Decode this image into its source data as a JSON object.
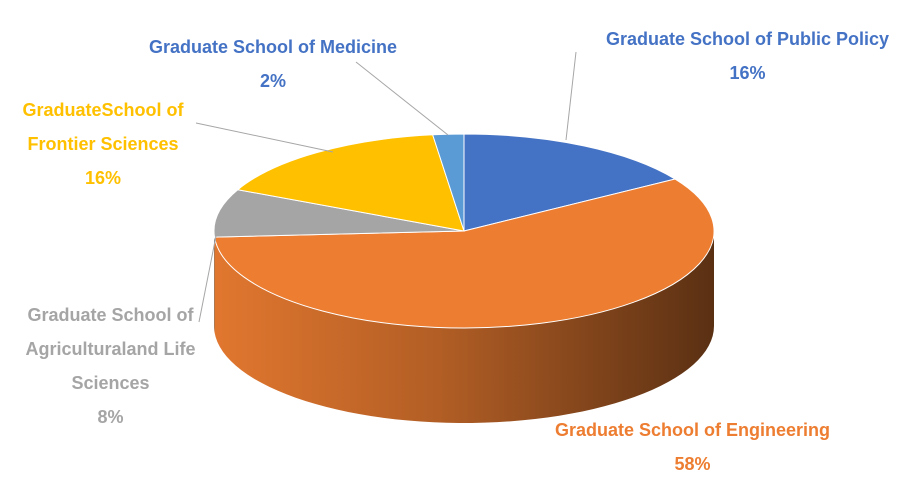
{
  "chart_data": {
    "type": "pie",
    "style": "3d-exploded-none",
    "title": "",
    "slices": [
      {
        "label": "Graduate School of Public Policy",
        "value": 16,
        "pct_text": "16%",
        "color": "#4472c4",
        "label_color": "#4472c4"
      },
      {
        "label": "Graduate School of Engineering",
        "value": 58,
        "pct_text": "58%",
        "color": "#ed7d31",
        "label_color": "#ed7d31"
      },
      {
        "label": "Graduate School of Agriculturaland Life Sciences",
        "value": 8,
        "pct_text": "8%",
        "color": "#a5a5a5",
        "label_color": "#a5a5a5"
      },
      {
        "label": "GraduateSchool of Frontier Sciences",
        "value": 16,
        "pct_text": "16%",
        "color": "#ffc000",
        "label_color": "#ffc000"
      },
      {
        "label": "Graduate School of Medicine",
        "value": 2,
        "pct_text": "2%",
        "color": "#5b9bd5",
        "label_color": "#4472c4"
      }
    ],
    "label_lines": {
      "public_policy": [
        "Graduate School of Public Policy",
        "16%"
      ],
      "engineering": [
        "Graduate School of Engineering",
        "58%"
      ],
      "agricultural": [
        "Graduate School of",
        "Agriculturaland Life",
        "Sciences",
        "8%"
      ],
      "frontier": [
        "GraduateSchool of",
        "Frontier Sciences",
        "16%"
      ],
      "medicine": [
        "Graduate School of Medicine",
        "2%"
      ]
    },
    "legend": "none"
  }
}
